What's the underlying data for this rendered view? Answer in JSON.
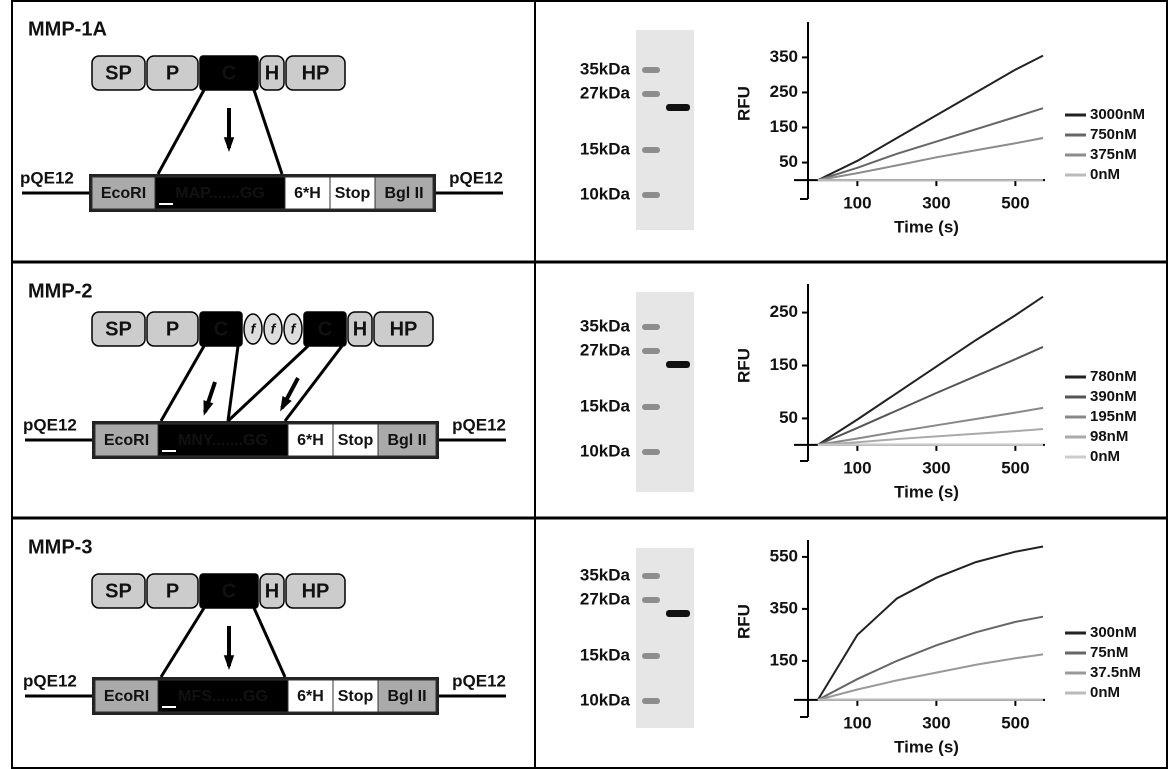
{
  "panels": [
    {
      "title": "MMP-1A",
      "domains": [
        "SP",
        "P",
        "C",
        "H",
        "HP"
      ],
      "vector": "pQE12",
      "construct": [
        "EcoRI",
        "MAP.......GG",
        "6*H",
        "Stop",
        "Bgl II"
      ],
      "gel_markers": [
        "35kDa",
        "27kDa",
        "15kDa",
        "10kDa"
      ]
    },
    {
      "title": "MMP-2",
      "domains": [
        "SP",
        "P",
        "C",
        "f",
        "f",
        "f",
        "C",
        "H",
        "HP"
      ],
      "vector": "pQE12",
      "construct": [
        "EcoRI",
        "MNY.......GG",
        "6*H",
        "Stop",
        "Bgl II"
      ],
      "gel_markers": [
        "35kDa",
        "27kDa",
        "15kDa",
        "10kDa"
      ]
    },
    {
      "title": "MMP-3",
      "domains": [
        "SP",
        "P",
        "C",
        "H",
        "HP"
      ],
      "vector": "pQE12",
      "construct": [
        "EcoRI",
        "MFS.......GG",
        "6*H",
        "Stop",
        "Bgl II"
      ],
      "gel_markers": [
        "35kDa",
        "27kDa",
        "15kDa",
        "10kDa"
      ]
    }
  ],
  "chart_data": [
    {
      "type": "line",
      "x_label": "Time (s)",
      "y_label": "RFU",
      "x": [
        0,
        100,
        200,
        300,
        400,
        500,
        570
      ],
      "xlim": [
        -25,
        575
      ],
      "xticks": [
        100,
        300,
        500
      ],
      "ylim": [
        -14,
        451
      ],
      "yticks": [
        50,
        150,
        250,
        350
      ],
      "series": [
        {
          "name": "3000nM",
          "color": "#222222",
          "values": [
            0,
            55,
            120,
            185,
            250,
            315,
            355
          ]
        },
        {
          "name": "750nM",
          "color": "#666666",
          "values": [
            0,
            35,
            75,
            110,
            145,
            180,
            205
          ]
        },
        {
          "name": "375nM",
          "color": "#8c8c8c",
          "values": [
            0,
            20,
            42,
            65,
            85,
            105,
            120
          ]
        },
        {
          "name": "0nM",
          "color": "#bbbbbb",
          "values": [
            0,
            0,
            0,
            0,
            0,
            0,
            0
          ]
        }
      ]
    },
    {
      "type": "line",
      "x_label": "Time (s)",
      "y_label": "RFU",
      "x": [
        0,
        100,
        200,
        300,
        400,
        500,
        570
      ],
      "xlim": [
        -25,
        575
      ],
      "xticks": [
        100,
        300,
        500
      ],
      "ylim": [
        -4,
        304
      ],
      "yticks": [
        50,
        150,
        250
      ],
      "series": [
        {
          "name": "780nM",
          "color": "#222222",
          "values": [
            0,
            48,
            98,
            148,
            198,
            245,
            280
          ]
        },
        {
          "name": "390nM",
          "color": "#555555",
          "values": [
            0,
            32,
            65,
            98,
            130,
            162,
            185
          ]
        },
        {
          "name": "195nM",
          "color": "#888888",
          "values": [
            0,
            12,
            25,
            37,
            49,
            61,
            70
          ]
        },
        {
          "name": "98nM",
          "color": "#aaaaaa",
          "values": [
            0,
            5,
            11,
            16,
            21,
            26,
            30
          ]
        },
        {
          "name": "0nM",
          "color": "#cccccc",
          "values": [
            0,
            0,
            0,
            0,
            0,
            0,
            0
          ]
        }
      ]
    },
    {
      "type": "line",
      "x_label": "Time (s)",
      "y_label": "RFU",
      "x": [
        0,
        100,
        200,
        300,
        400,
        500,
        570
      ],
      "xlim": [
        -25,
        575
      ],
      "xticks": [
        100,
        300,
        500
      ],
      "ylim": [
        -12,
        615
      ],
      "yticks": [
        150,
        350,
        550
      ],
      "series": [
        {
          "name": "300nM",
          "color": "#222222",
          "values": [
            0,
            250,
            390,
            470,
            530,
            570,
            590
          ]
        },
        {
          "name": "75nM",
          "color": "#666666",
          "values": [
            0,
            80,
            150,
            210,
            260,
            300,
            320
          ]
        },
        {
          "name": "37.5nM",
          "color": "#999999",
          "values": [
            0,
            40,
            75,
            105,
            135,
            160,
            175
          ]
        },
        {
          "name": "0nM",
          "color": "#bbbbbb",
          "values": [
            0,
            0,
            0,
            0,
            0,
            0,
            0
          ]
        }
      ]
    }
  ]
}
